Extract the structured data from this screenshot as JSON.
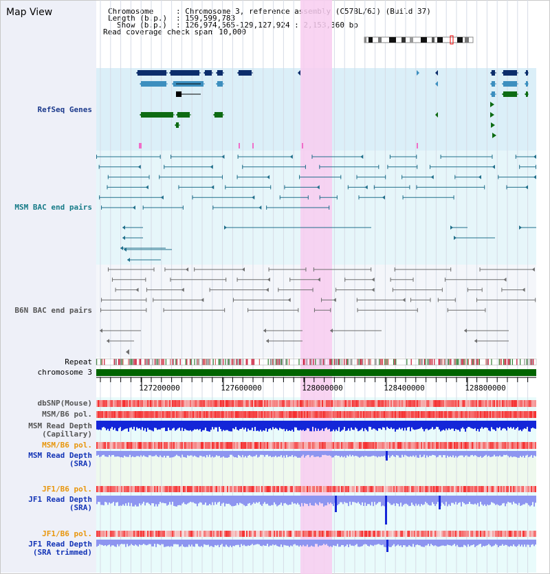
{
  "view_title": "Map View",
  "info": {
    "chromosome_key": "Chromosome",
    "chromosome_value": ": Chromosome 3, reference assembly (C57BL/6J) (Build 37)",
    "length_key": "Length (b.p.)",
    "length_value": ": 159,599,783",
    "show_key": "Show (b.p.)",
    "show_value": ": 126,974,565-129,127,924 : 2,153,360 bp",
    "coverage_key": "Read coverage check span",
    "coverage_value": ": 10,000"
  },
  "tracks": {
    "refseq": "RefSeq Genes",
    "msm_bac": "MSM BAC end pairs",
    "b6n_bac": "B6N BAC end pairs",
    "repeat": "Repeat",
    "chromosome": "chromosome 3",
    "dbsnp": "dbSNP(Mouse)",
    "msm_b6_pol_1": "MSM/B6 pol.",
    "msm_depth_cap_1": "MSM Read Depth",
    "msm_depth_cap_2": "(Capillary)",
    "msm_b6_pol_2": "MSM/B6 pol.",
    "msm_depth_sra_1": "MSM Read Depth",
    "msm_depth_sra_2": "(SRA)",
    "jf1_b6_pol_1": "JF1/B6 pol.",
    "jf1_depth_sra_1": "JF1 Read Depth",
    "jf1_depth_sra_2": "(SRA)",
    "jf1_b6_pol_2": "JF1/B6 pol.",
    "jf1_depth_trim_1": "JF1 Read Depth",
    "jf1_depth_trim_2": "(SRA trimmed)"
  },
  "axis": {
    "labels": [
      "127200000",
      "127600000",
      "128000000",
      "128400000",
      "128800000"
    ]
  },
  "colors": {
    "refseq_bg": "#dbeff8",
    "msm_bac_bg": "#e6f6fa",
    "b6n_bac_bg": "#f4f6fa",
    "lower_bg": "#e9fbfb",
    "highlight": "#f8cdf0",
    "refseq_dark": "#0c2d6b",
    "refseq_mid": "#3d8fbf",
    "refseq_green": "#0d6b12",
    "msm_line": "#1f6e8a",
    "b6n_line": "#6e6e6e",
    "chrom_bar": "#006400",
    "depth_dark": "#1426d8",
    "depth_light": "#8d95f0"
  }
}
